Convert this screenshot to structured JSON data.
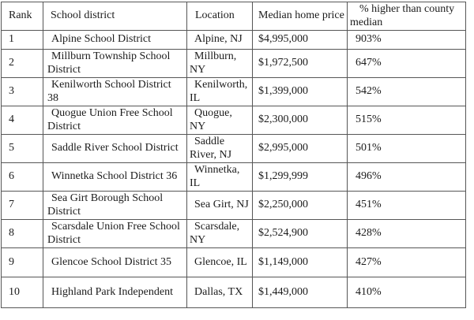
{
  "table": {
    "columns": [
      "Rank",
      "School district",
      "Location",
      "Median home price",
      "% higher than county median"
    ],
    "rows": [
      {
        "rank": "1",
        "district": "Alpine School District",
        "location": "Alpine, NJ",
        "price": "$4,995,000",
        "pct": "903%"
      },
      {
        "rank": "2",
        "district": "Millburn Township School District",
        "location": "Millburn, NY",
        "price": "$1,972,500",
        "pct": "647%"
      },
      {
        "rank": "3",
        "district": "Kenilworth School District 38",
        "location": "Kenilworth, IL",
        "price": "$1,399,000",
        "pct": "542%"
      },
      {
        "rank": "4",
        "district": "Quogue Union Free School District",
        "location": "Quogue, NY",
        "price": "$2,300,000",
        "pct": "515%"
      },
      {
        "rank": "5",
        "district": "Saddle River School District",
        "location": "Saddle River, NJ",
        "price": "$2,995,000",
        "pct": "501%"
      },
      {
        "rank": "6",
        "district": "Winnetka School District 36",
        "location": "Winnetka, IL",
        "price": "$1,299,999",
        "pct": "496%"
      },
      {
        "rank": "7",
        "district": "Sea Girt Borough School District",
        "location": "Sea Girt, NJ",
        "price": "$2,250,000",
        "pct": "451%"
      },
      {
        "rank": "8",
        "district": "Scarsdale Union Free School District",
        "location": "Scarsdale, NY",
        "price": "$2,524,900",
        "pct": "428%"
      },
      {
        "rank": "9",
        "district": "Glencoe School District 35",
        "location": "Glencoe, IL",
        "price": "$1,149,000",
        "pct": "427%"
      },
      {
        "rank": "10",
        "district": "Highland Park Independent",
        "location": "Dallas, TX",
        "price": "$1,449,000",
        "pct": "410%"
      }
    ]
  }
}
